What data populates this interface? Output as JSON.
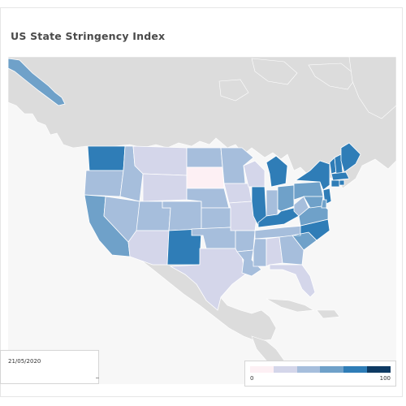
{
  "title": "US State Stringency Index",
  "date_label": "21/05/2020",
  "legend": {
    "min_label": "0",
    "max_label": "100",
    "colors": [
      "#fdf0f4",
      "#d4d6ea",
      "#a6bedc",
      "#6fa1c9",
      "#2f7db7",
      "#0e3a63"
    ]
  },
  "colors": {
    "land": "#dcdcdc",
    "ocean": "#f7f7f7",
    "state_border": "#ffffff"
  },
  "states": [
    {
      "name": "WA",
      "level": 4
    },
    {
      "name": "OR",
      "level": 2
    },
    {
      "name": "CA",
      "level": 3
    },
    {
      "name": "ID",
      "level": 2
    },
    {
      "name": "NV",
      "level": 2
    },
    {
      "name": "MT",
      "level": 1
    },
    {
      "name": "WY",
      "level": 1
    },
    {
      "name": "UT",
      "level": 2
    },
    {
      "name": "AZ",
      "level": 1
    },
    {
      "name": "CO",
      "level": 2
    },
    {
      "name": "NM",
      "level": 4
    },
    {
      "name": "ND",
      "level": 2
    },
    {
      "name": "SD",
      "level": 0
    },
    {
      "name": "NE",
      "level": 2
    },
    {
      "name": "KS",
      "level": 2
    },
    {
      "name": "OK",
      "level": 2
    },
    {
      "name": "TX",
      "level": 1
    },
    {
      "name": "MN",
      "level": 2
    },
    {
      "name": "IA",
      "level": 1
    },
    {
      "name": "MO",
      "level": 1
    },
    {
      "name": "AR",
      "level": 2
    },
    {
      "name": "LA",
      "level": 2
    },
    {
      "name": "WI",
      "level": 1
    },
    {
      "name": "IL",
      "level": 4
    },
    {
      "name": "MI",
      "level": 4
    },
    {
      "name": "IN",
      "level": 2
    },
    {
      "name": "OH",
      "level": 3
    },
    {
      "name": "KY",
      "level": 4
    },
    {
      "name": "TN",
      "level": 2
    },
    {
      "name": "MS",
      "level": 2
    },
    {
      "name": "AL",
      "level": 1
    },
    {
      "name": "GA",
      "level": 2
    },
    {
      "name": "FL",
      "level": 1
    },
    {
      "name": "SC",
      "level": 3
    },
    {
      "name": "NC",
      "level": 4
    },
    {
      "name": "VA",
      "level": 3
    },
    {
      "name": "WV",
      "level": 2
    },
    {
      "name": "PA",
      "level": 3
    },
    {
      "name": "NY",
      "level": 4
    },
    {
      "name": "VT",
      "level": 4
    },
    {
      "name": "NH",
      "level": 4
    },
    {
      "name": "ME",
      "level": 4
    },
    {
      "name": "MA",
      "level": 4
    },
    {
      "name": "CT",
      "level": 4
    },
    {
      "name": "NJ",
      "level": 4
    },
    {
      "name": "MD",
      "level": 3
    },
    {
      "name": "DE",
      "level": 3
    },
    {
      "name": "RI",
      "level": 4
    },
    {
      "name": "AK",
      "level": 3
    }
  ]
}
